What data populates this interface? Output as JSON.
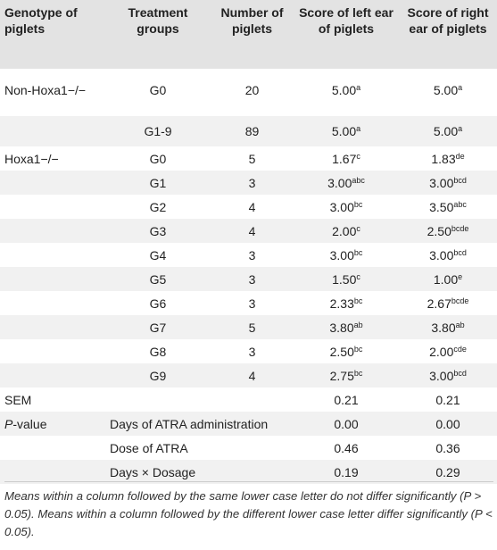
{
  "headers": {
    "genotype": "Genotype of piglets",
    "treatment": "Treatment groups",
    "number": "Number of piglets",
    "left_ear": "Score of left ear of piglets",
    "right_ear": "Score of right ear of piglets"
  },
  "rows": [
    {
      "genotype": "Non-Hoxa1−/−",
      "group": "G0",
      "n": "20",
      "left": "5.00",
      "left_sup": "a",
      "right": "5.00",
      "right_sup": "a"
    },
    {
      "genotype": "",
      "group": "G1-9",
      "n": "89",
      "left": "5.00",
      "left_sup": "a",
      "right": "5.00",
      "right_sup": "a"
    },
    {
      "genotype": "Hoxa1−/−",
      "group": "G0",
      "n": "5",
      "left": "1.67",
      "left_sup": "c",
      "right": "1.83",
      "right_sup": "de"
    },
    {
      "genotype": "",
      "group": "G1",
      "n": "3",
      "left": "3.00",
      "left_sup": "abc",
      "right": "3.00",
      "right_sup": "bcd"
    },
    {
      "genotype": "",
      "group": "G2",
      "n": "4",
      "left": "3.00",
      "left_sup": "bc",
      "right": "3.50",
      "right_sup": "abc"
    },
    {
      "genotype": "",
      "group": "G3",
      "n": "4",
      "left": "2.00",
      "left_sup": "c",
      "right": "2.50",
      "right_sup": "bcde"
    },
    {
      "genotype": "",
      "group": "G4",
      "n": "3",
      "left": "3.00",
      "left_sup": "bc",
      "right": "3.00",
      "right_sup": "bcd"
    },
    {
      "genotype": "",
      "group": "G5",
      "n": "3",
      "left": "1.50",
      "left_sup": "c",
      "right": "1.00",
      "right_sup": "e"
    },
    {
      "genotype": "",
      "group": "G6",
      "n": "3",
      "left": "2.33",
      "left_sup": "bc",
      "right": "2.67",
      "right_sup": "bcde"
    },
    {
      "genotype": "",
      "group": "G7",
      "n": "5",
      "left": "3.80",
      "left_sup": "ab",
      "right": "3.80",
      "right_sup": "ab"
    },
    {
      "genotype": "",
      "group": "G8",
      "n": "3",
      "left": "2.50",
      "left_sup": "bc",
      "right": "2.00",
      "right_sup": "cde"
    },
    {
      "genotype": "",
      "group": "G9",
      "n": "4",
      "left": "2.75",
      "left_sup": "bc",
      "right": "3.00",
      "right_sup": "bcd"
    }
  ],
  "sem": {
    "label": "SEM",
    "left": "0.21",
    "right": "0.21"
  },
  "pvalue": {
    "label_italic": "P",
    "label_rest": "-value",
    "rows": [
      {
        "factor": "Days of ATRA administration",
        "left": "0.00",
        "right": "0.00"
      },
      {
        "factor": "Dose of ATRA",
        "left": "0.46",
        "right": "0.36"
      },
      {
        "factor": "Days × Dosage",
        "left": "0.19",
        "right": "0.29"
      }
    ]
  },
  "footnote": "Means within a column followed by the same lower case letter do not differ significantly (P > 0.05). Means within a column followed by the different lower case letter differ significantly (P < 0.05).",
  "colors": {
    "header_bg": "#e3e3e3",
    "stripe_bg": "#f1f1f1",
    "text": "#222222"
  }
}
